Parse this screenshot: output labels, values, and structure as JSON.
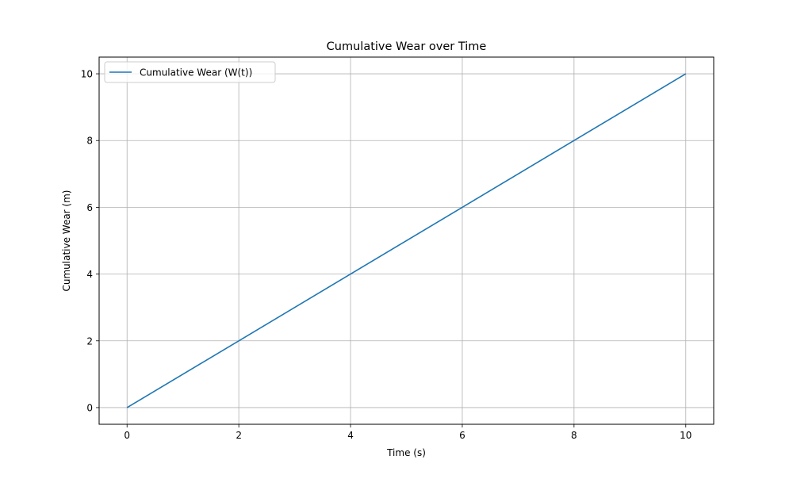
{
  "chart_data": {
    "type": "line",
    "title": "Cumulative Wear over Time",
    "xlabel": "Time (s)",
    "ylabel": "Cumulative Wear (m)",
    "xlim": [
      -0.5,
      10.5
    ],
    "ylim": [
      -0.5,
      10.5
    ],
    "xticks": [
      0,
      2,
      4,
      6,
      8,
      10
    ],
    "yticks": [
      0,
      2,
      4,
      6,
      8,
      10
    ],
    "grid": true,
    "legend_position": "top-left",
    "series": [
      {
        "name": "Cumulative Wear (W(t))",
        "color": "#1f77b4",
        "x": [
          0,
          2,
          4,
          6,
          8,
          10
        ],
        "y": [
          0,
          2,
          4,
          6,
          8,
          10
        ]
      }
    ]
  }
}
